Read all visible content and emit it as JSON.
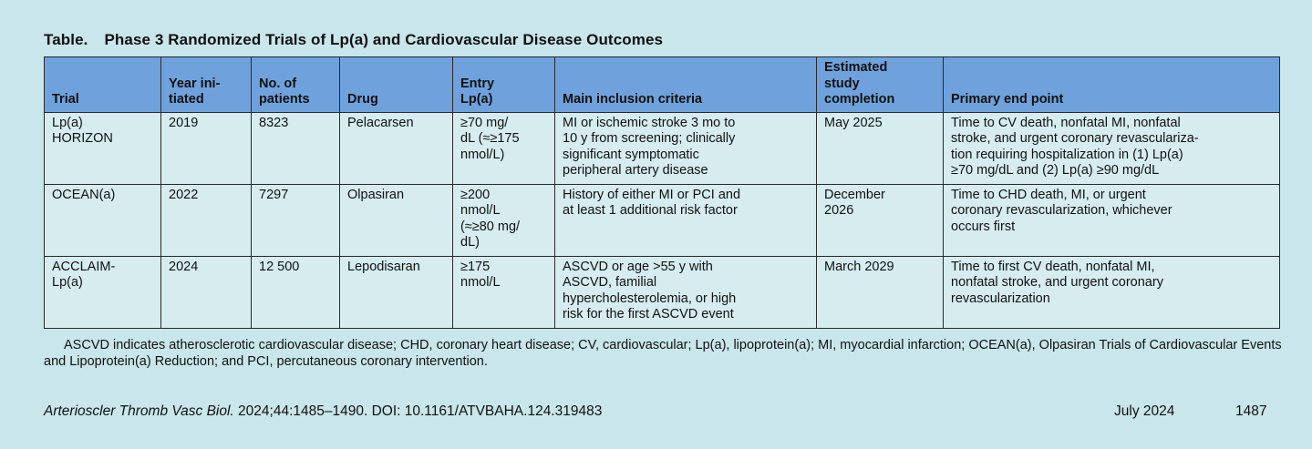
{
  "table": {
    "label": "Table.",
    "title": "Phase 3 Randomized Trials of Lp(a) and Cardiovascular Disease Outcomes",
    "headers": [
      "Trial",
      "Year ini-\ntiated",
      "No. of\npatients",
      "Drug",
      "Entry\nLp(a)",
      "Main inclusion criteria",
      "Estimated\nstudy\ncompletion",
      "Primary end point"
    ],
    "rows": [
      {
        "trial": "Lp(a)\nHORIZON",
        "year": "2019",
        "patients": "8323",
        "drug": "Pelacarsen",
        "entry": "≥70 mg/\ndL (≈≥175\nnmol/L)",
        "criteria": "MI or ischemic stroke 3 mo to\n10 y from screening; clinically\nsignificant symptomatic\nperipheral artery disease",
        "completion": "May 2025",
        "endpoint": "Time to CV death, nonfatal MI, nonfatal\nstroke, and urgent coronary revasculariza-\ntion requiring hospitalization in (1) Lp(a)\n≥70 mg/dL and (2) Lp(a) ≥90 mg/dL"
      },
      {
        "trial": "OCEAN(a)",
        "year": "2022",
        "patients": "7297",
        "drug": "Olpasiran",
        "entry": "≥200\nnmol/L\n(≈≥80 mg/\ndL)",
        "criteria": "History of either MI or PCI and\nat least 1 additional risk factor",
        "completion": "December\n2026",
        "endpoint": "Time to CHD death, MI, or urgent\ncoronary revascularization, whichever\noccurs first"
      },
      {
        "trial": "ACCLAIM-\nLp(a)",
        "year": "2024",
        "patients": "12 500",
        "drug": "Lepodisaran",
        "entry": "≥175\nnmol/L",
        "criteria": "ASCVD or age >55 y with\nASCVD, familial\nhypercholesterolemia, or high\nrisk for the first ASCVD event",
        "completion": "March 2029",
        "endpoint": "Time to first CV death, nonfatal MI,\nnonfatal stroke, and urgent coronary\nrevascularization"
      }
    ]
  },
  "footnote": "ASCVD indicates atherosclerotic cardiovascular disease; CHD, coronary heart disease; CV, cardiovascular; Lp(a), lipoprotein(a); MI, myocardial infarction; OCEAN(a), Olpasiran Trials of Cardiovascular Events and Lipoprotein(a) Reduction; and PCI, percutaneous coronary intervention.",
  "citation": {
    "journal": "Arterioscler Thromb Vasc Biol.",
    "details": " 2024;44:1485–1490. DOI: 10.1161/ATVBAHA.124.319483"
  },
  "footer": {
    "date": "July 2024",
    "page": "1487"
  }
}
